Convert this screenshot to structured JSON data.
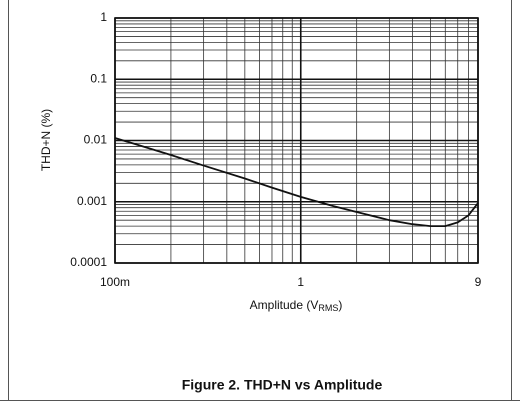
{
  "chart_data": {
    "type": "line",
    "title": "Figure 2. THD+N vs Amplitude",
    "xlabel": [
      "Amplitude (V",
      "RMS",
      ")"
    ],
    "ylabel": "THD+N (%)",
    "x": [
      0.1,
      0.2,
      0.3,
      0.5,
      0.7,
      1,
      1.5,
      2,
      3,
      4,
      5,
      6,
      7,
      8,
      9
    ],
    "series": [
      {
        "name": "THD+N",
        "color": "#111111",
        "values": [
          0.011,
          0.0058,
          0.0039,
          0.0024,
          0.0017,
          0.0012,
          0.00085,
          0.00068,
          0.0005,
          0.00043,
          0.0004,
          0.0004,
          0.00046,
          0.0006,
          0.00095
        ]
      }
    ],
    "xlim": [
      0.1,
      9
    ],
    "ylim": [
      0.0001,
      1
    ],
    "xticks": [
      {
        "value": 0.1,
        "label": "100m"
      },
      1,
      9
    ],
    "yticks": [
      1,
      0.1,
      0.01,
      0.001,
      0.0001
    ],
    "xscale": "log",
    "yscale": "log",
    "grid": true,
    "minor_grid": true
  }
}
